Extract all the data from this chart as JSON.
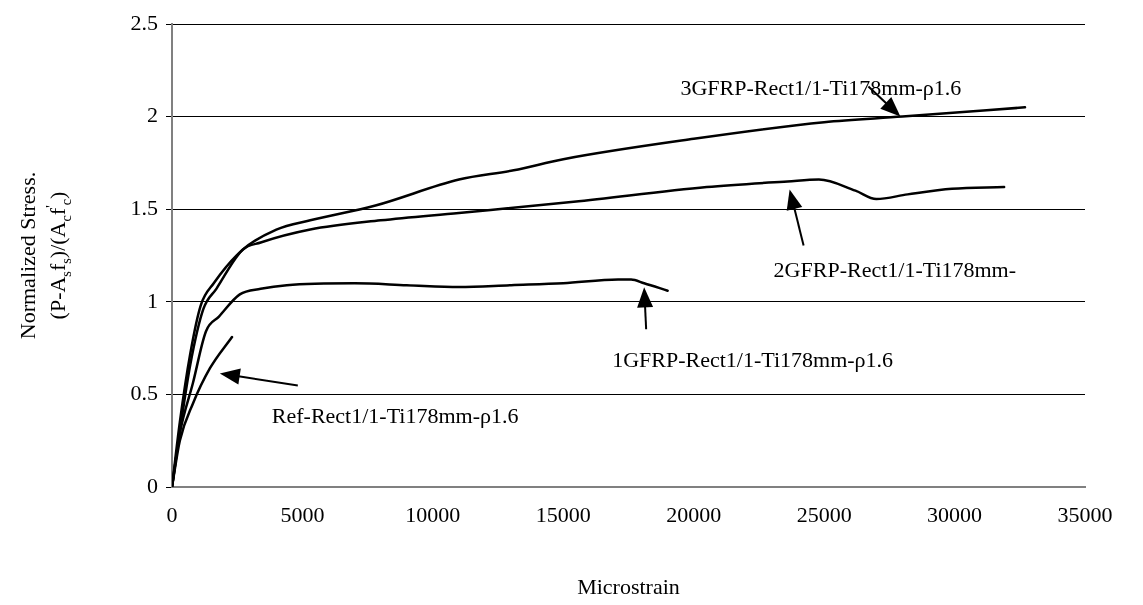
{
  "chart_data": {
    "type": "line",
    "xlabel": "Microstrain",
    "ylabel": "Normalized Stress.\n(P-A$_{s}$f$_{s}$)/(A$_{c}$f$^{'}$$_{c}$)",
    "xlim": [
      0,
      35000
    ],
    "xticks": [
      0,
      5000,
      10000,
      15000,
      20000,
      25000,
      30000,
      35000
    ],
    "ylim": [
      0,
      2.5
    ],
    "yticks": [
      0,
      0.5,
      1,
      1.5,
      2,
      2.5
    ],
    "grid": "y",
    "legend": "bottom right",
    "marker": "none",
    "line_style": "solid",
    "series": [
      {
        "name": "Ref-Rect1/1-Ti178mm-ρ1.6",
        "color": "#000000",
        "x": [
          0,
          300,
          800,
          1450,
          2300
        ],
        "values": [
          0,
          0.25,
          0.45,
          0.64,
          0.81
        ]
      },
      {
        "name": "1GFRP-Rect1/1-Ti178mm-ρ1.6",
        "color": "#000000",
        "x": [
          0,
          300,
          800,
          1300,
          1800,
          2600,
          3400,
          4400,
          7000,
          9000,
          11000,
          13000,
          15000,
          17100,
          17600,
          18100,
          19000
        ],
        "values": [
          0,
          0.29,
          0.56,
          0.84,
          0.92,
          1.04,
          1.07,
          1.09,
          1.1,
          1.09,
          1.08,
          1.09,
          1.1,
          1.12,
          1.12,
          1.1,
          1.06
        ]
      },
      {
        "name": "2GFRP-Rect1/1-Ti178mm-",
        "color": "#000000",
        "x": [
          0,
          300,
          700,
          1200,
          1700,
          2700,
          3400,
          5300,
          8000,
          11000,
          15400,
          20500,
          23600,
          24800,
          26200,
          27000,
          28200,
          29900,
          31900
        ],
        "values": [
          0,
          0.3,
          0.66,
          0.96,
          1.07,
          1.28,
          1.32,
          1.39,
          1.44,
          1.48,
          1.54,
          1.62,
          1.65,
          1.66,
          1.6,
          1.555,
          1.58,
          1.61,
          1.62
        ]
      },
      {
        "name": "3GFRP-Rect1/1-Ti178mm-ρ1.6",
        "color": "#000000",
        "x": [
          0,
          300,
          700,
          1100,
          1600,
          2700,
          4000,
          5300,
          7800,
          11000,
          13100,
          15000,
          20000,
          25000,
          28000,
          32700
        ],
        "values": [
          0,
          0.35,
          0.72,
          0.98,
          1.1,
          1.28,
          1.39,
          1.44,
          1.52,
          1.66,
          1.71,
          1.77,
          1.88,
          1.97,
          2.0,
          2.05
        ]
      }
    ]
  }
}
